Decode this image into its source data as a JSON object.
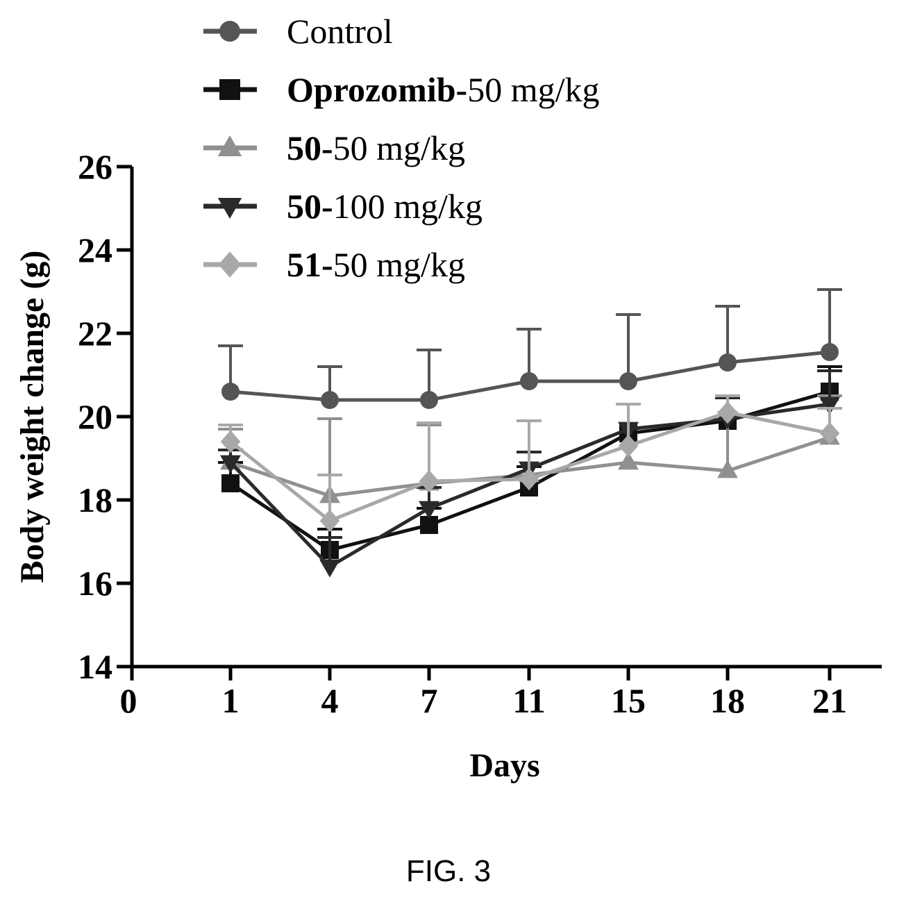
{
  "figure_caption": "FIG. 3",
  "chart_data": {
    "type": "line",
    "xlabel": "Days",
    "ylabel": "Body weight change (g)",
    "x": [
      1,
      4,
      7,
      11,
      15,
      18,
      21
    ],
    "x_tick_labels": [
      "0",
      "1",
      "4",
      "7",
      "11",
      "15",
      "18",
      "21"
    ],
    "y_tick_labels": [
      "14",
      "16",
      "18",
      "20",
      "22",
      "24",
      "26"
    ],
    "ylim": [
      14,
      26
    ],
    "grid": false,
    "legend_position": "top-left, above plot",
    "series": [
      {
        "name": "Control",
        "legend_bold": "",
        "legend_rest": "Control",
        "marker": "circle",
        "color": "#555555",
        "values": [
          20.6,
          20.4,
          20.4,
          20.85,
          20.85,
          21.3,
          21.55
        ],
        "error": [
          1.1,
          0.8,
          1.2,
          1.25,
          1.6,
          1.35,
          1.5
        ]
      },
      {
        "name": "Oprozomib-50 mg/kg",
        "legend_bold": "Oprozomib-",
        "legend_rest": "50 mg/kg",
        "marker": "square",
        "color": "#111111",
        "values": [
          18.4,
          16.8,
          17.4,
          18.3,
          19.6,
          19.9,
          20.6
        ],
        "error": [
          0.5,
          0.5,
          0.4,
          0.5,
          0.7,
          0.6,
          0.6
        ]
      },
      {
        "name": "50-50 mg/kg",
        "legend_bold": "50-",
        "legend_rest": "50 mg/kg",
        "marker": "triangle-up",
        "color": "#909090",
        "values": [
          18.9,
          18.1,
          18.4,
          18.6,
          18.9,
          18.7,
          19.5
        ],
        "error": [
          0.8,
          1.85,
          1.4,
          1.3,
          1.4,
          1.75,
          1.0
        ]
      },
      {
        "name": "50-100 mg/kg",
        "legend_bold": "50-",
        "legend_rest": "100 mg/kg",
        "marker": "triangle-down",
        "color": "#2a2a2a",
        "values": [
          18.9,
          16.4,
          17.8,
          18.75,
          19.7,
          19.95,
          20.3
        ],
        "error": [
          0.3,
          0.7,
          0.5,
          0.4,
          0.6,
          0.5,
          0.8
        ]
      },
      {
        "name": "51-50 mg/kg",
        "legend_bold": "51-",
        "legend_rest": "50 mg/kg",
        "marker": "diamond",
        "color": "#a8a8a8",
        "values": [
          19.4,
          17.5,
          18.45,
          18.5,
          19.3,
          20.1,
          19.6
        ],
        "error": [
          0.4,
          1.1,
          1.4,
          1.4,
          1.0,
          0.4,
          0.6
        ]
      }
    ]
  }
}
